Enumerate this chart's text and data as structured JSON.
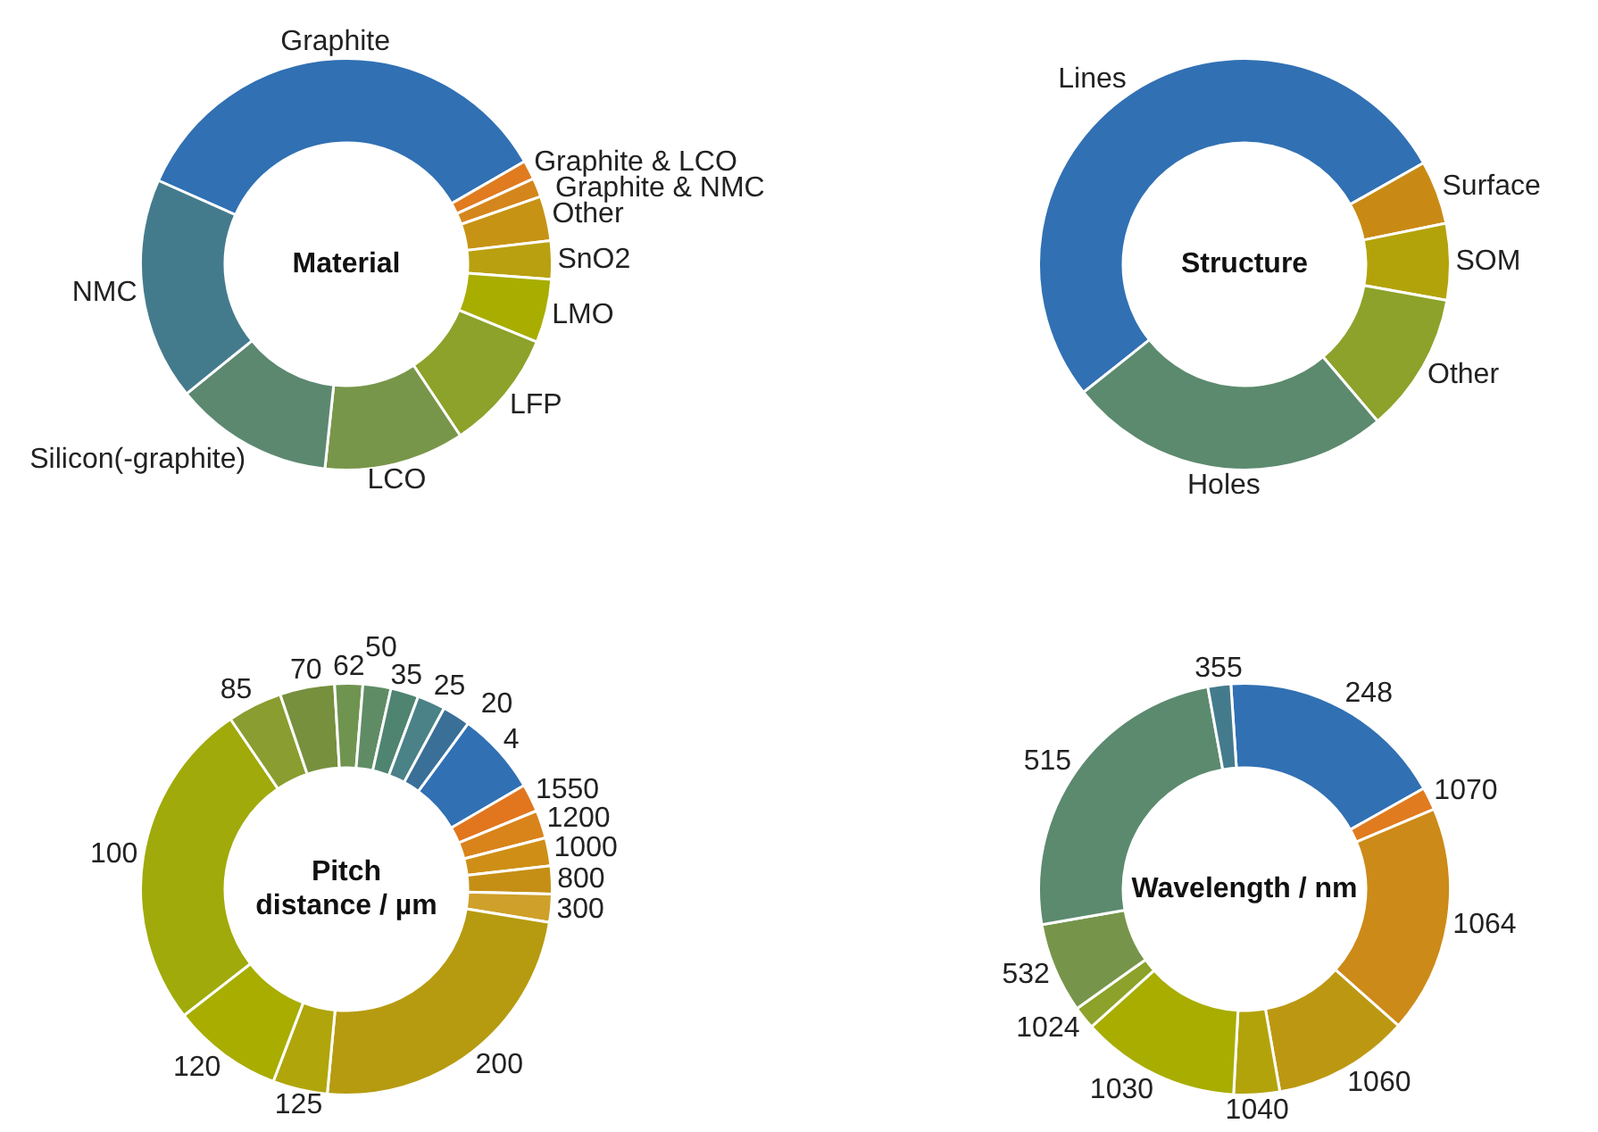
{
  "chart_data": [
    {
      "type": "donut",
      "title": "Material",
      "categories": [
        "Graphite",
        "Graphite & LCO",
        "Graphite & NMC",
        "Other",
        "SnO2",
        "LMO",
        "LFP",
        "LCO",
        "Silicon(-graphite)",
        "NMC"
      ],
      "values": [
        35,
        1.5,
        1.5,
        3.5,
        3,
        5,
        9.5,
        11,
        12.5,
        17.5
      ],
      "colors": [
        "#3070b3",
        "#e07b1f",
        "#d4861d",
        "#c79315",
        "#b8a010",
        "#a8ad00",
        "#8ca22a",
        "#78964a",
        "#5c8870",
        "#447b8c"
      ]
    },
    {
      "type": "donut",
      "title": "Structure",
      "categories": [
        "Lines",
        "Surface",
        "SOM",
        "Other",
        "Holes"
      ],
      "values": [
        52.5,
        5,
        6,
        11,
        25.5
      ],
      "colors": [
        "#3170b3",
        "#c98a15",
        "#b3a30a",
        "#8ca22a",
        "#5c8a6e"
      ]
    },
    {
      "type": "donut",
      "title": "Pitch distance / µm",
      "categories": [
        "4",
        "1550",
        "1200",
        "1000",
        "800",
        "300",
        "200",
        "125",
        "120",
        "100",
        "85",
        "70",
        "62",
        "50",
        "35",
        "25",
        "20"
      ],
      "values": [
        6.5,
        2.2,
        2.2,
        2.2,
        2.2,
        2.2,
        23.9,
        4.3,
        8.7,
        26.0,
        4.3,
        4.3,
        2.2,
        2.2,
        2.2,
        2.2,
        2.2
      ],
      "colors": [
        "#3170b3",
        "#e2761e",
        "#d9831b",
        "#cf8f17",
        "#c58f16",
        "#cfa02a",
        "#b69b10",
        "#b0a50a",
        "#a8ad00",
        "#a0aa0a",
        "#8a9d30",
        "#76903e",
        "#6f9450",
        "#5f8c65",
        "#4f8470",
        "#4a8288",
        "#3a6f98"
      ]
    },
    {
      "type": "donut",
      "title": "Wavelength / nm",
      "categories": [
        "248",
        "1070",
        "1064",
        "1060",
        "1040",
        "1030",
        "1024",
        "532",
        "515",
        "355"
      ],
      "values": [
        17.9,
        1.8,
        17.9,
        10.7,
        3.6,
        12.5,
        1.8,
        7.1,
        24.9,
        1.8
      ],
      "colors": [
        "#3170b3",
        "#e07b1f",
        "#cc8a18",
        "#bc9812",
        "#b3a30a",
        "#a8ad00",
        "#8ca22a",
        "#76954a",
        "#5c8a6e",
        "#447b8c"
      ]
    }
  ]
}
